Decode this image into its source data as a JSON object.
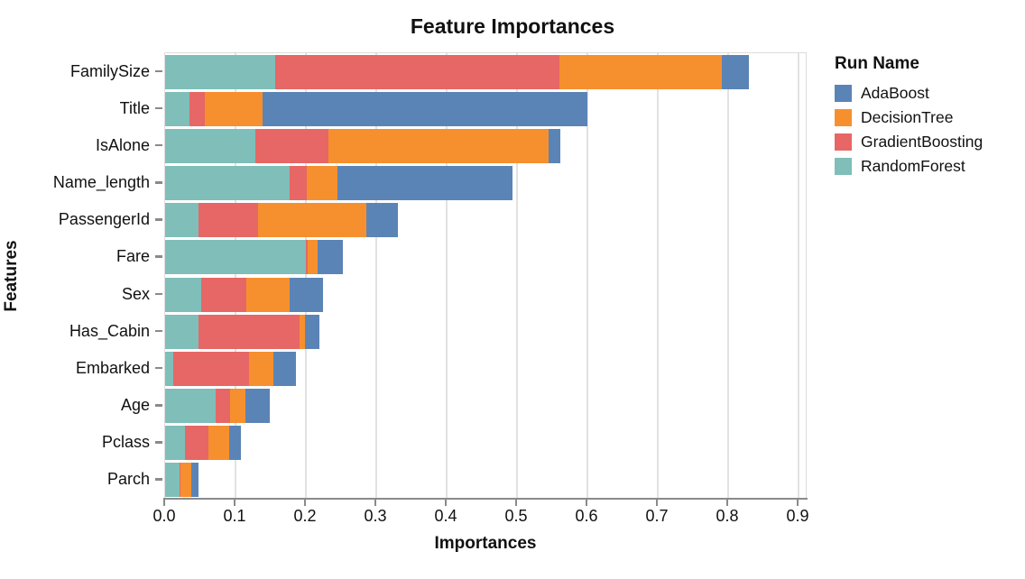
{
  "chart_data": {
    "type": "bar",
    "stacked": true,
    "orientation": "horizontal",
    "title": "Feature Importances",
    "xlabel": "Importances",
    "ylabel": "Features",
    "legend_title": "Run Name",
    "legend_position": "right",
    "grid": true,
    "xlim": [
      0.0,
      0.913
    ],
    "x_ticks": [
      "0.0",
      "0.1",
      "0.2",
      "0.3",
      "0.4",
      "0.5",
      "0.6",
      "0.7",
      "0.8",
      "0.9"
    ],
    "categories": [
      "FamilySize",
      "Title",
      "IsAlone",
      "Name_length",
      "PassengerId",
      "Fare",
      "Sex",
      "Has_Cabin",
      "Embarked",
      "Age",
      "Pclass",
      "Parch"
    ],
    "stack_order": [
      "RandomForest",
      "GradientBoosting",
      "DecisionTree",
      "AdaBoost"
    ],
    "legend_order": [
      "AdaBoost",
      "DecisionTree",
      "GradientBoosting",
      "RandomForest"
    ],
    "series": [
      {
        "name": "RandomForest",
        "color": "#7fbeb9",
        "values": [
          0.157,
          0.035,
          0.128,
          0.177,
          0.048,
          0.2,
          0.051,
          0.048,
          0.012,
          0.072,
          0.028,
          0.02
        ]
      },
      {
        "name": "GradientBoosting",
        "color": "#e66765",
        "values": [
          0.403,
          0.021,
          0.104,
          0.024,
          0.084,
          0.002,
          0.064,
          0.143,
          0.107,
          0.02,
          0.034,
          0.002
        ]
      },
      {
        "name": "DecisionTree",
        "color": "#f6902e",
        "values": [
          0.231,
          0.083,
          0.313,
          0.044,
          0.154,
          0.015,
          0.062,
          0.008,
          0.035,
          0.022,
          0.029,
          0.015
        ]
      },
      {
        "name": "AdaBoost",
        "color": "#5b84b6",
        "values": [
          0.039,
          0.461,
          0.017,
          0.248,
          0.045,
          0.035,
          0.048,
          0.02,
          0.032,
          0.035,
          0.017,
          0.01
        ]
      }
    ],
    "totals": [
      0.83,
      0.6,
      0.562,
      0.493,
      0.331,
      0.252,
      0.225,
      0.219,
      0.186,
      0.149,
      0.108,
      0.047
    ],
    "axis_colors": {
      "grid": "#e2e2e2",
      "domain": "#8a8a8a",
      "border": "#dcdcdc"
    }
  }
}
